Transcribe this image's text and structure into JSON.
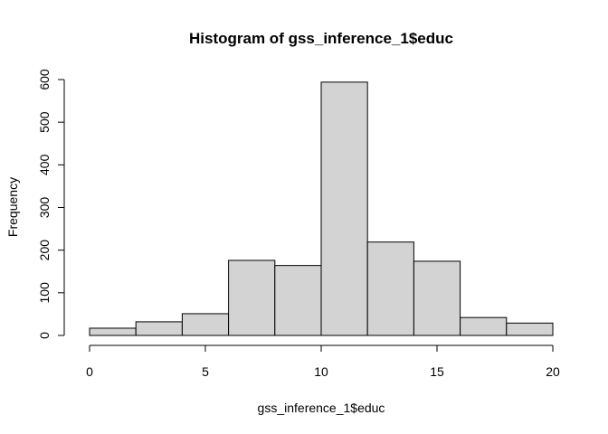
{
  "chart_data": {
    "type": "bar",
    "title": "Histogram of gss_inference_1$educ",
    "xlabel": "gss_inference_1$educ",
    "ylabel": "Frequency",
    "bins": [
      {
        "x0": 0,
        "x1": 2,
        "count": 17
      },
      {
        "x0": 2,
        "x1": 4,
        "count": 32
      },
      {
        "x0": 4,
        "x1": 6,
        "count": 51
      },
      {
        "x0": 6,
        "x1": 8,
        "count": 176
      },
      {
        "x0": 8,
        "x1": 10,
        "count": 164
      },
      {
        "x0": 10,
        "x1": 12,
        "count": 594
      },
      {
        "x0": 12,
        "x1": 14,
        "count": 219
      },
      {
        "x0": 14,
        "x1": 16,
        "count": 174
      },
      {
        "x0": 16,
        "x1": 18,
        "count": 42
      },
      {
        "x0": 18,
        "x1": 20,
        "count": 29
      }
    ],
    "xticks": [
      0,
      5,
      10,
      15,
      20
    ],
    "yticks": [
      0,
      100,
      200,
      300,
      400,
      500,
      600
    ],
    "xlim": [
      0,
      20
    ],
    "ylim": [
      0,
      600
    ],
    "grid": false,
    "bar_fill": "#d3d3d3",
    "bar_stroke": "#000000"
  }
}
